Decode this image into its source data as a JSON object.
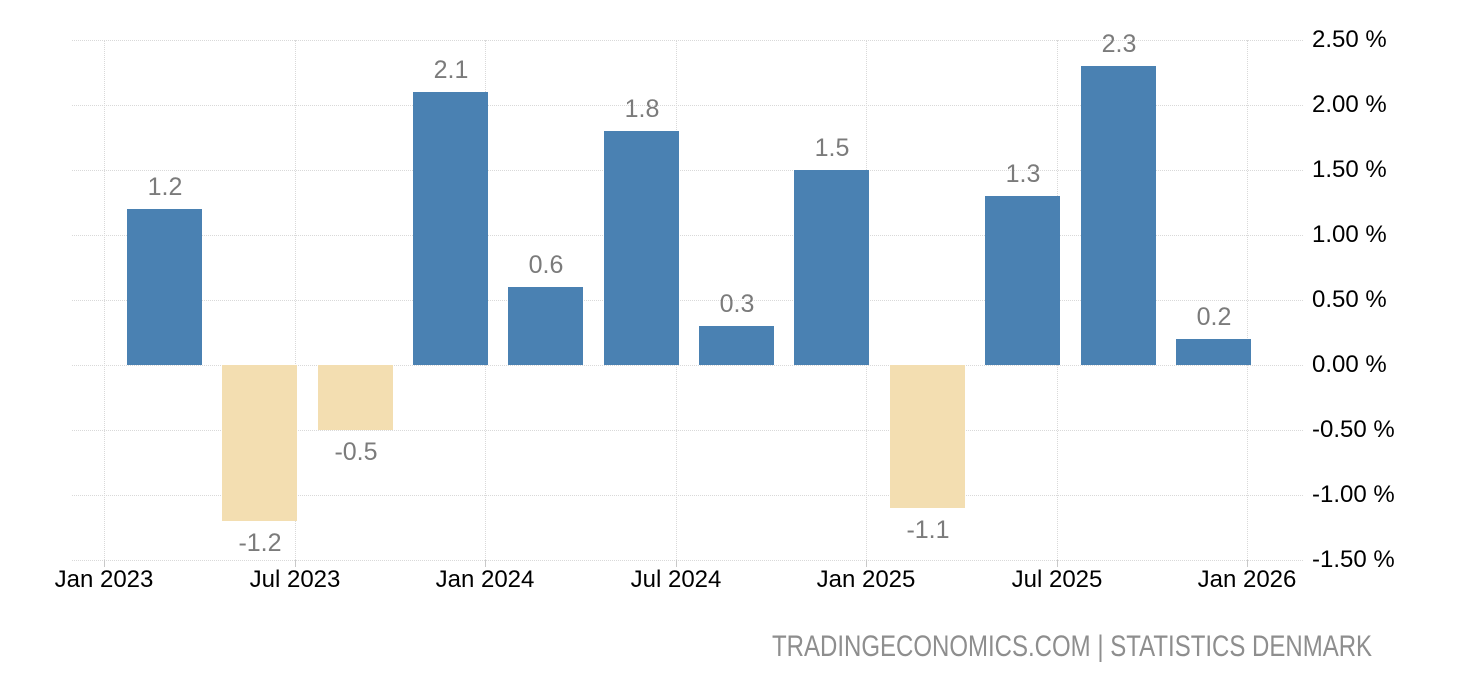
{
  "chart_data": {
    "type": "bar",
    "title": "",
    "unit": "%",
    "categories": [
      "Q1 2023",
      "Q2 2023",
      "Q3 2023",
      "Q4 2023",
      "Q1 2024",
      "Q2 2024",
      "Q3 2024",
      "Q4 2024",
      "Q1 2025",
      "Q2 2025",
      "Q3 2025",
      "Q4 2025"
    ],
    "values": [
      1.2,
      -1.2,
      -0.5,
      2.1,
      0.6,
      1.8,
      0.3,
      1.5,
      -1.1,
      1.3,
      2.3,
      0.2
    ],
    "data_labels": [
      "1.2",
      "-1.2",
      "-0.5",
      "2.1",
      "0.6",
      "1.8",
      "0.3",
      "1.5",
      "-1.1",
      "1.3",
      "2.3",
      "0.2"
    ],
    "x_tick_labels": [
      "Jan 2023",
      "Jul 2023",
      "Jan 2024",
      "Jul 2024",
      "Jan 2025",
      "Jul 2025",
      "Jan 2026"
    ],
    "y_ticks": [
      {
        "value": 2.5,
        "label": "2.50 %"
      },
      {
        "value": 2.0,
        "label": "2.00 %"
      },
      {
        "value": 1.5,
        "label": "1.50 %"
      },
      {
        "value": 1.0,
        "label": "1.00 %"
      },
      {
        "value": 0.5,
        "label": "0.50 %"
      },
      {
        "value": 0.0,
        "label": "0.00 %"
      },
      {
        "value": -0.5,
        "label": "-0.50 %"
      },
      {
        "value": -1.0,
        "label": "-1.00 %"
      },
      {
        "value": -1.5,
        "label": "-1.50 %"
      }
    ],
    "ylim": [
      -1.5,
      2.5
    ],
    "xlabel": "",
    "ylabel": "",
    "grid": "dotted",
    "legend": "none",
    "colors": {
      "positive_bar": "#4A81B2",
      "negative_bar": "#F3DEB1",
      "gridline": "#D9D9D9",
      "value_label": "#7B7B7B",
      "axis_text": "#000000",
      "footer_text": "#8E8E8E"
    }
  },
  "footer": {
    "source_text": "TRADINGECONOMICS.COM | STATISTICS DENMARK"
  }
}
